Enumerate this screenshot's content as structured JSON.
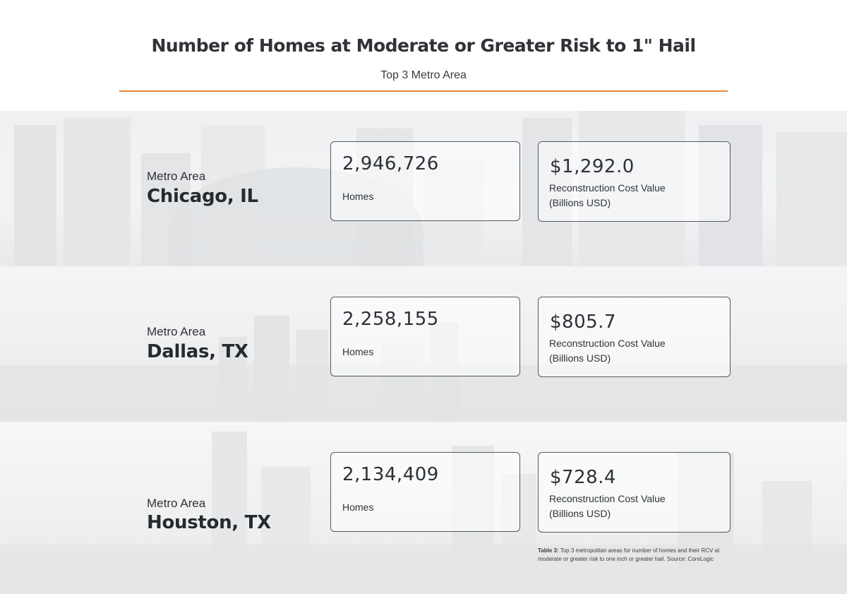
{
  "header": {
    "title": "Number of Homes at Moderate or Greater Risk to 1\" Hail",
    "subtitle": "Top 3 Metro Area"
  },
  "colors": {
    "accent_rule": "#e8893e",
    "card_border": "#555a62",
    "text_dark": "#262a30"
  },
  "metros": [
    {
      "label": "Metro Area",
      "name": "Chicago, IL",
      "homes_value": "2,946,726",
      "homes_label": "Homes",
      "rcv_value": "$1,292.0",
      "rcv_label_line1": "Reconstruction Cost Value",
      "rcv_label_line2": "(Billions USD)"
    },
    {
      "label": "Metro Area",
      "name": "Dallas, TX",
      "homes_value": "2,258,155",
      "homes_label": "Homes",
      "rcv_value": "$805.7",
      "rcv_label_line1": "Reconstruction Cost Value",
      "rcv_label_line2": "(Billions USD)"
    },
    {
      "label": "Metro Area",
      "name": "Houston, TX",
      "homes_value": "2,134,409",
      "homes_label": "Homes",
      "rcv_value": "$728.4",
      "rcv_label_line1": "Reconstruction Cost Value",
      "rcv_label_line2": "(Billions USD)"
    }
  ],
  "caption": {
    "lead": "Table 3:",
    "text": " Top 3 metropolitan areas for number of homes and their RCV at moderate or greater risk to one inch or greater hail. Source: CoreLogic"
  }
}
